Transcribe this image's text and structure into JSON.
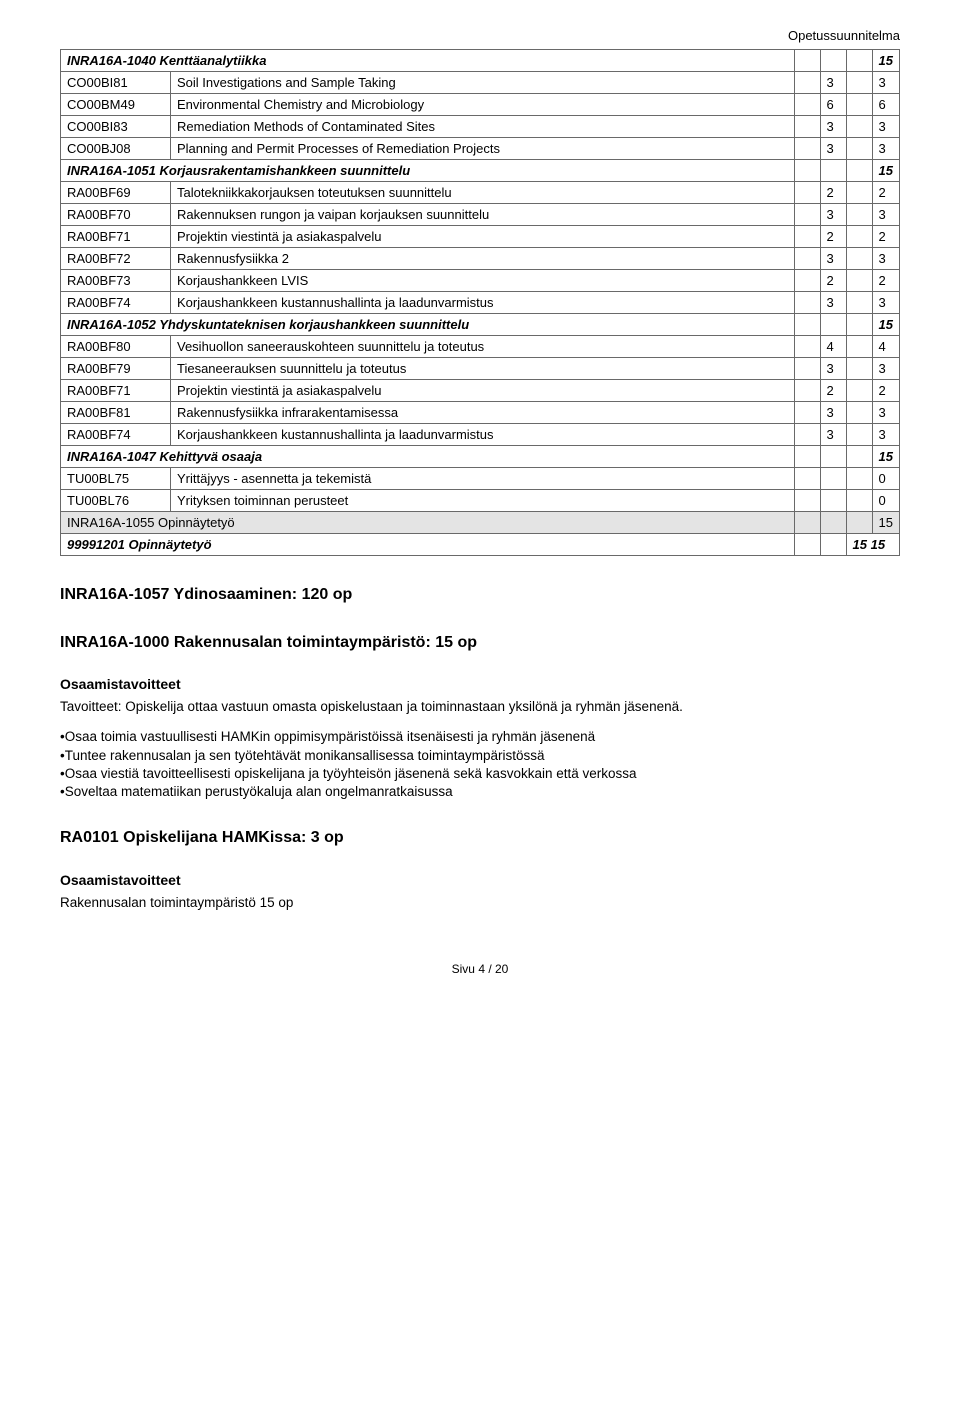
{
  "header": {
    "right": "Opetussuunnitelma"
  },
  "colors": {
    "border": "#696969",
    "highlight_bg": "#e4e4e4",
    "text": "#000000",
    "background": "#ffffff"
  },
  "table": {
    "rows": [
      {
        "type": "section",
        "code": "INRA16A-1040",
        "title": "Kenttäanalytiikka",
        "v4": "15"
      },
      {
        "code": "CO00BI81",
        "title": "Soil Investigations and Sample Taking",
        "v2": "3",
        "v4": "3"
      },
      {
        "code": "CO00BM49",
        "title": "Environmental Chemistry and Microbiology",
        "v2": "6",
        "v4": "6"
      },
      {
        "code": "CO00BI83",
        "title": "Remediation Methods of Contaminated Sites",
        "v2": "3",
        "v4": "3"
      },
      {
        "code": "CO00BJ08",
        "title": "Planning and Permit Processes of Remediation Projects",
        "v2": "3",
        "v4": "3"
      },
      {
        "type": "section",
        "code": "INRA16A-1051",
        "title": "Korjausrakentamishankkeen suunnittelu",
        "v4": "15"
      },
      {
        "code": "RA00BF69",
        "title": "Talotekniikkakorjauksen toteutuksen suunnittelu",
        "v2": "2",
        "v4": "2"
      },
      {
        "code": "RA00BF70",
        "title": "Rakennuksen rungon ja vaipan korjauksen suunnittelu",
        "v2": "3",
        "v4": "3"
      },
      {
        "code": "RA00BF71",
        "title": "Projektin viestintä ja asiakaspalvelu",
        "v2": "2",
        "v4": "2"
      },
      {
        "code": "RA00BF72",
        "title": "Rakennusfysiikka 2",
        "v2": "3",
        "v4": "3"
      },
      {
        "code": "RA00BF73",
        "title": "Korjaushankkeen LVIS",
        "v2": "2",
        "v4": "2"
      },
      {
        "code": "RA00BF74",
        "title": "Korjaushankkeen kustannushallinta ja laadunvarmistus",
        "v2": "3",
        "v4": "3"
      },
      {
        "type": "section",
        "code": "INRA16A-1052",
        "title": "Yhdyskuntateknisen korjaushankkeen suunnittelu",
        "v4": "15"
      },
      {
        "code": "RA00BF80",
        "title": "Vesihuollon saneerauskohteen suunnittelu ja toteutus",
        "v2": "4",
        "v4": "4"
      },
      {
        "code": "RA00BF79",
        "title": "Tiesaneerauksen suunnittelu ja toteutus",
        "v2": "3",
        "v4": "3"
      },
      {
        "code": "RA00BF71",
        "title": "Projektin viestintä ja asiakaspalvelu",
        "v2": "2",
        "v4": "2"
      },
      {
        "code": "RA00BF81",
        "title": "Rakennusfysiikka infrarakentamisessa",
        "v2": "3",
        "v4": "3"
      },
      {
        "code": "RA00BF74",
        "title": "Korjaushankkeen kustannushallinta ja laadunvarmistus",
        "v2": "3",
        "v4": "3"
      },
      {
        "type": "section",
        "code": "INRA16A-1047",
        "title": "Kehittyvä osaaja",
        "v4": "15"
      },
      {
        "code": "TU00BL75",
        "title": "Yrittäjyys - asennetta ja tekemistä",
        "v4": "0"
      },
      {
        "code": "TU00BL76",
        "title": "Yrityksen toiminnan perusteet",
        "v4": "0"
      },
      {
        "type": "highlight",
        "code": "INRA16A-1055",
        "title": "Opinnäytetyö",
        "v4": "15"
      },
      {
        "type": "italic",
        "code": "99991201",
        "title": "Opinnäytetyö",
        "combined": "15 15"
      }
    ]
  },
  "body": {
    "h2a": "INRA16A-1057 Ydinosaaminen: 120 op",
    "h2b": "INRA16A-1000 Rakennusalan toimintaympäristö: 15 op",
    "goals_label": "Osaamistavoitteet",
    "p1": "Tavoitteet: Opiskelija ottaa vastuun omasta opiskelustaan ja toiminnastaan yksilönä ja ryhmän jäsenenä.",
    "bullets": [
      "•Osaa toimia vastuullisesti HAMKin oppimisympäristöissä itsenäisesti ja ryhmän jäsenenä",
      "•Tuntee rakennusalan ja sen työtehtävät monikansallisessa toimintaympäristössä",
      "•Osaa viestiä tavoitteellisesti opiskelijana ja työyhteisön jäsenenä sekä kasvokkain että verkossa",
      "•Soveltaa matematiikan perustyökaluja alan ongelmanratkaisussa"
    ],
    "h2c": "RA0101 Opiskelijana HAMKissa: 3 op",
    "goals_label2": "Osaamistavoitteet",
    "p2": "Rakennusalan toimintaympäristö 15 op"
  },
  "footer": {
    "text": "Sivu 4 / 20"
  }
}
